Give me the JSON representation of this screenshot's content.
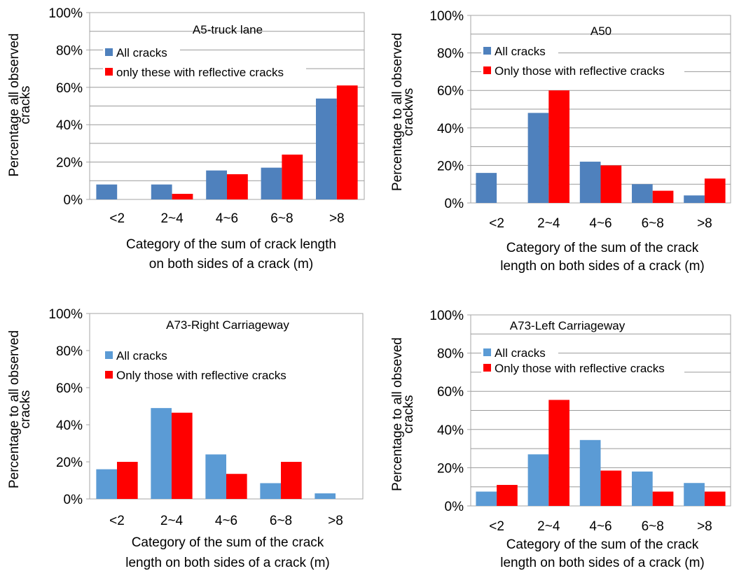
{
  "chart_data": [
    {
      "type": "bar",
      "title": "A5-truck lane",
      "ylabel": "Percentage all observed cracks",
      "xlabel": "Category of the sum of crack length on both sides of a crack (m)",
      "ylim": [
        0,
        1
      ],
      "yticks": [
        "0%",
        "20%",
        "40%",
        "60%",
        "80%",
        "100%"
      ],
      "categories": [
        "<2",
        "2~4",
        "4~6",
        "6~8",
        ">8"
      ],
      "grid": true,
      "legend_position": "top-left",
      "series": [
        {
          "name": "All cracks",
          "color": "#4f81bd",
          "values": [
            0.08,
            0.08,
            0.155,
            0.17,
            0.54
          ]
        },
        {
          "name": "only these with reflective cracks",
          "color": "#ff0000",
          "values": [
            0.0,
            0.03,
            0.135,
            0.24,
            0.61
          ]
        }
      ]
    },
    {
      "type": "bar",
      "title": "A50",
      "ylabel": "Percentage to all observed crackws",
      "xlabel": "Category of the sum of the crack length on both sides of a crack (m)",
      "ylim": [
        0,
        1
      ],
      "yticks": [
        "0%",
        "20%",
        "40%",
        "60%",
        "80%",
        "100%"
      ],
      "categories": [
        "<2",
        "2~4",
        "4~6",
        "6~8",
        ">8"
      ],
      "grid": true,
      "legend_position": "top-left",
      "series": [
        {
          "name": "All cracks",
          "color": "#4f81bd",
          "values": [
            0.16,
            0.48,
            0.22,
            0.1,
            0.04
          ]
        },
        {
          "name": "Only those with reflective cracks",
          "color": "#ff0000",
          "values": [
            0.0,
            0.6,
            0.2,
            0.065,
            0.13
          ]
        }
      ]
    },
    {
      "type": "bar",
      "title": "A73-Right Carriageway",
      "ylabel": "Percentage to all observed cracks",
      "xlabel": "Category of the sum of the crack length on both sides of a crack (m)",
      "ylim": [
        0,
        1
      ],
      "yticks": [
        "0%",
        "20%",
        "40%",
        "60%",
        "80%",
        "100%"
      ],
      "categories": [
        "<2",
        "2~4",
        "4~6",
        "6~8",
        ">8"
      ],
      "grid": false,
      "legend_position": "top-left",
      "series": [
        {
          "name": "All cracks",
          "color": "#5b9bd5",
          "values": [
            0.16,
            0.49,
            0.24,
            0.085,
            0.03
          ]
        },
        {
          "name": "Only those with reflective cracks",
          "color": "#ff0000",
          "values": [
            0.2,
            0.465,
            0.135,
            0.2,
            0.0
          ]
        }
      ]
    },
    {
      "type": "bar",
      "title": "A73-Left Carriageway",
      "ylabel": "Percentage to all obseved cracks",
      "xlabel": "Category of the sum of the crack length on both sides of a crack (m)",
      "ylim": [
        0,
        1
      ],
      "yticks": [
        "0%",
        "20%",
        "40%",
        "60%",
        "80%",
        "100%"
      ],
      "categories": [
        "<2",
        "2~4",
        "4~6",
        "6~8",
        ">8"
      ],
      "grid": true,
      "legend_position": "top-left",
      "series": [
        {
          "name": "All cracks",
          "color": "#5b9bd5",
          "values": [
            0.075,
            0.27,
            0.345,
            0.18,
            0.12
          ]
        },
        {
          "name": "Only those with reflective cracks",
          "color": "#ff0000",
          "values": [
            0.11,
            0.555,
            0.185,
            0.075,
            0.075
          ]
        }
      ]
    }
  ]
}
